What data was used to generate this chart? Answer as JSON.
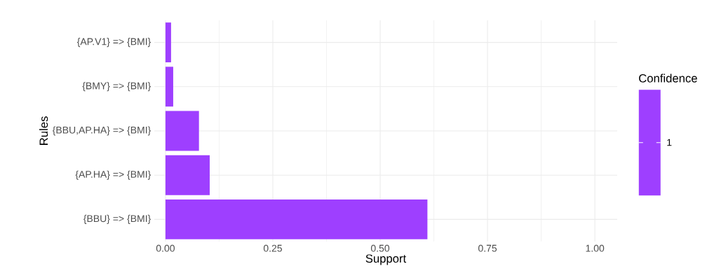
{
  "chart_data": {
    "type": "bar",
    "orientation": "horizontal",
    "categories": [
      "{AP.V1} => {BMI}",
      "{BMY} => {BMI}",
      "{BBU,AP.HA} => {BMI}",
      "{AP.HA} => {BMI}",
      "{BBU} => {BMI}"
    ],
    "series": [
      {
        "name": "1",
        "color": "#9e3fff",
        "values": [
          0.013,
          0.018,
          0.078,
          0.103,
          0.61
        ]
      }
    ],
    "xlabel": "Support",
    "ylabel": "Rules",
    "legend_title": "Confidence",
    "xlim": [
      -0.026,
      1.052
    ],
    "xticks": [
      {
        "value": 0,
        "label": "0.00"
      },
      {
        "value": 0.25,
        "label": "0.25"
      },
      {
        "value": 0.5,
        "label": "0.50"
      },
      {
        "value": 0.75,
        "label": "0.75"
      },
      {
        "value": 1,
        "label": "1.00"
      }
    ],
    "grid": true,
    "legend": "right"
  }
}
